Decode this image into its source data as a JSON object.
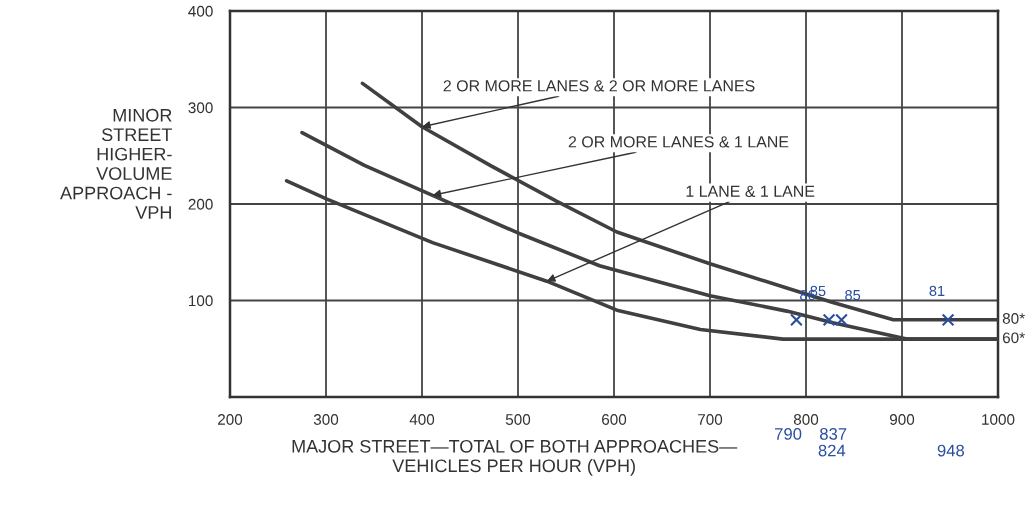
{
  "chart_data": {
    "type": "line",
    "xlabel": "MAJOR STREET—TOTAL OF BOTH APPROACHES—\nVEHICLES PER HOUR (VPH)",
    "ylabel": "MINOR\nSTREET\nHIGHER-\nVOLUME\nAPPROACH -\nVPH",
    "xlim": [
      200,
      1000
    ],
    "xticks": [
      200,
      300,
      400,
      500,
      600,
      700,
      800,
      900,
      1000
    ],
    "ylim": [
      0,
      400
    ],
    "yticks": [
      {
        "value": 0,
        "label": null
      },
      100,
      200,
      300,
      400
    ],
    "grid": true,
    "legend": false,
    "line_style": "solid",
    "marker": "none",
    "series": [
      {
        "color": "#404040",
        "x": [
          338,
          400,
          471,
          540,
          603,
          700,
          780,
          828,
          891,
          1000
        ],
        "values": [
          325,
          280,
          240,
          203,
          171,
          138,
          113,
          98,
          80,
          80
        ]
      },
      {
        "color": "#404040",
        "x": [
          275,
          340,
          411,
          500,
          585,
          603,
          700,
          780,
          828,
          905,
          1000
        ],
        "values": [
          274,
          240,
          209,
          170,
          136,
          131,
          105,
          89,
          77,
          60,
          60
        ]
      },
      {
        "color": "#404040",
        "x": [
          259,
          301,
          411,
          530,
          603,
          690,
          776,
          1000
        ],
        "values": [
          224,
          205,
          160,
          120,
          90,
          70,
          60,
          60
        ]
      },
      {
        "type": "scatter",
        "marker": "cross",
        "color": "#2a4ea0",
        "x": [
          790,
          824,
          837,
          948
        ],
        "values": [
          80,
          80,
          80,
          80
        ]
      }
    ],
    "annotations": [
      {
        "text": "2 OR MORE LANES & 2 OR MORE LANES",
        "x": 400,
        "y": 280
      },
      {
        "text": "2 OR MORE LANES & 1 LANE",
        "x": 411,
        "y": 209
      },
      {
        "text": "1 LANE & 1 LANE",
        "x": 530,
        "y": 120
      },
      {
        "text": "80*",
        "x": 1000,
        "y": 80
      },
      {
        "text": "60*",
        "x": 1000,
        "y": 60
      },
      "86",
      "85",
      "85",
      "81",
      "790",
      "824",
      "837",
      "948"
    ]
  }
}
